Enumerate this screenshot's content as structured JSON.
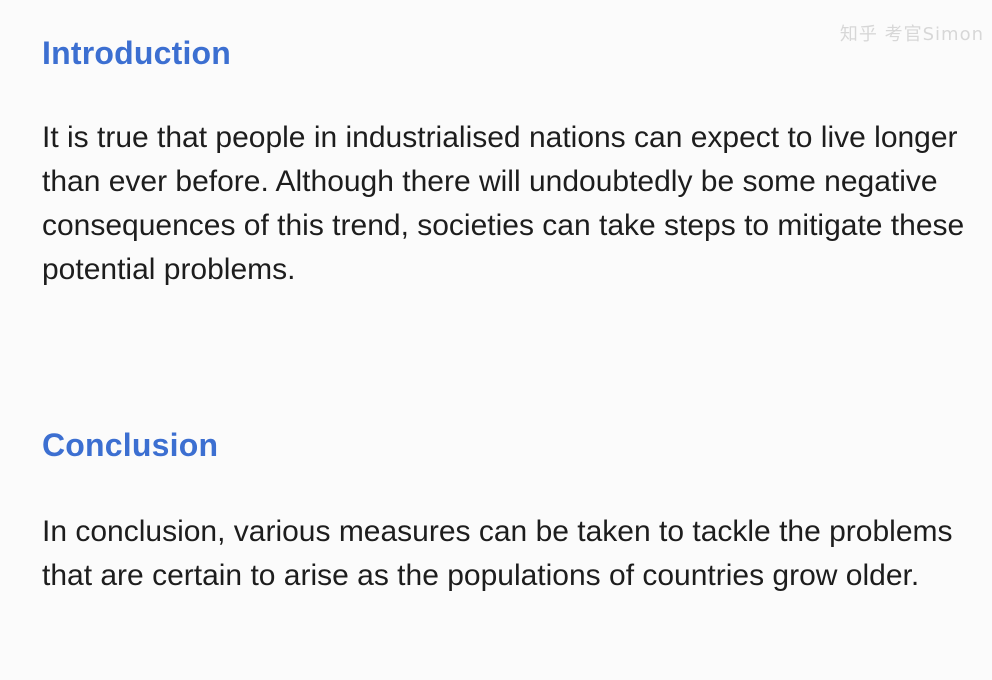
{
  "intro": {
    "heading": "Introduction",
    "text": "It is true that people in industrialised nations can expect to live longer than ever before. Although there will undoubtedly be some negative consequences of this trend, societies can take steps to mitigate these potential problems."
  },
  "conclusion": {
    "heading": "Conclusion",
    "text": "In conclusion, various measures can be taken to tackle the problems that are certain to arise as the populations of countries grow older."
  },
  "watermark": "知乎 考官Simon"
}
